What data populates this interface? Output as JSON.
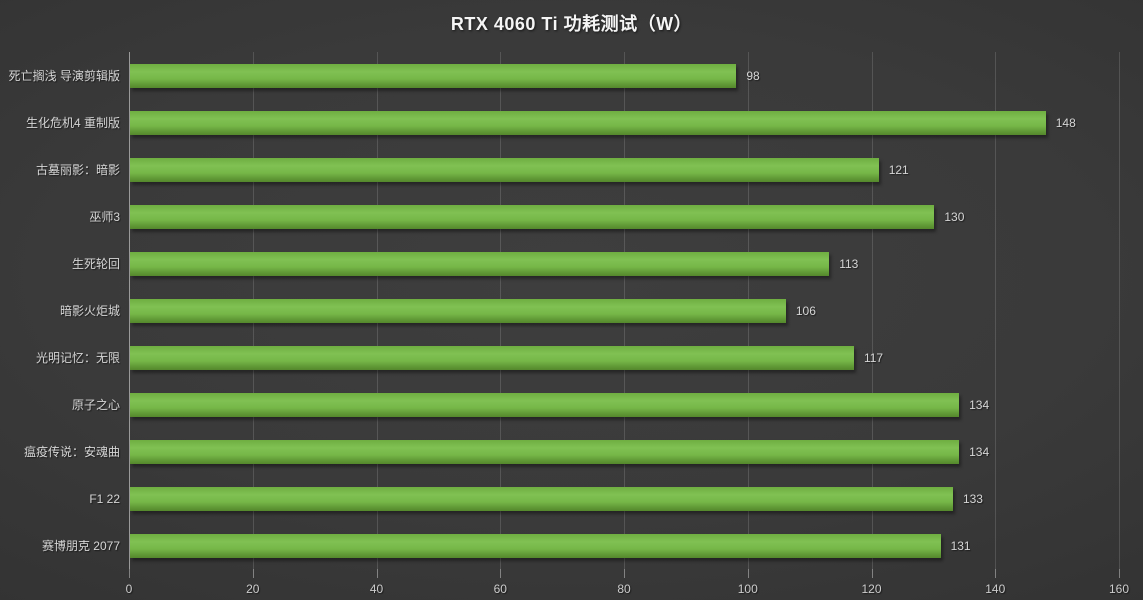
{
  "chart_data": {
    "type": "bar",
    "orientation": "horizontal",
    "title": "RTX 4060 Ti 功耗测试（W）",
    "categories": [
      "死亡搁浅 导演剪辑版",
      "生化危机4 重制版",
      "古墓丽影：暗影",
      "巫师3",
      "生死轮回",
      "暗影火炬城",
      "光明记忆：无限",
      "原子之心",
      "瘟疫传说：安魂曲",
      "F1 22",
      "赛博朋克 2077"
    ],
    "values": [
      98,
      148,
      121,
      130,
      113,
      106,
      117,
      134,
      134,
      133,
      131
    ],
    "xlim": [
      0,
      160
    ],
    "x_ticks": [
      0,
      20,
      40,
      60,
      80,
      100,
      120,
      140,
      160
    ],
    "grid": "vertical-only",
    "legend": "none",
    "colors": {
      "bar_top": "#6fae41",
      "bar_light": "#80c153",
      "bar_mid": "#76b748",
      "bar_bottom": "#54882c",
      "background_center": "#3e3e3e",
      "background_edge": "#262626",
      "label_text": "#d6d6d6",
      "tick_text": "#cccccc",
      "axis_line": "#9a9a9a",
      "title_text": "#f5f5f5"
    }
  }
}
